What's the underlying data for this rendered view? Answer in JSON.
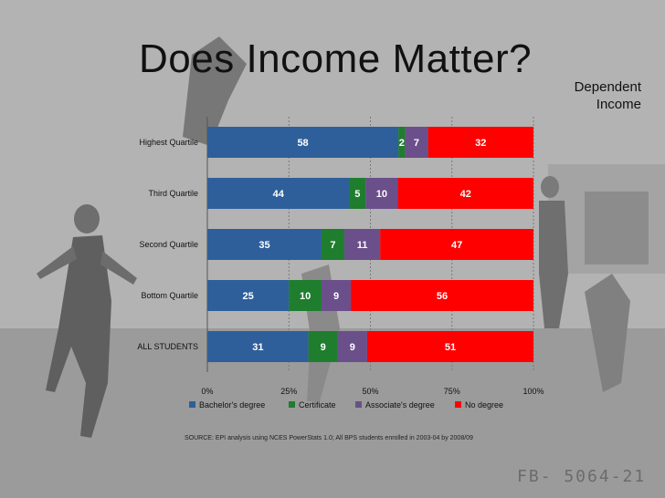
{
  "slide": {
    "title": "Does Income Matter?",
    "subtitle_line1": "Dependent",
    "subtitle_line2": "Income",
    "source": "SOURCE: EPI analysis using NCES PowerStats 1.0; All BPS students enrolled in 2003-04 by 2008/09",
    "stamp": "FB- 5064-21"
  },
  "chart_data": {
    "type": "bar",
    "orientation": "horizontal",
    "stacked": "percent",
    "categories": [
      "Highest Quartile",
      "Third Quartile",
      "Second Quartile",
      "Bottom Quartile",
      "ALL STUDENTS"
    ],
    "series": [
      {
        "name": "Bachelor's degree",
        "color": "#2e5f9a",
        "values": [
          58,
          44,
          35,
          25,
          31
        ]
      },
      {
        "name": "Certificate",
        "color": "#1f7d2e",
        "values": [
          2,
          5,
          7,
          10,
          9
        ]
      },
      {
        "name": "Associate's degree",
        "color": "#6a4f8a",
        "values": [
          7,
          10,
          11,
          9,
          9
        ]
      },
      {
        "name": "No degree",
        "color": "#ff0000",
        "values": [
          32,
          42,
          47,
          56,
          51
        ]
      }
    ],
    "x_ticks": [
      "0%",
      "25%",
      "50%",
      "75%",
      "100%"
    ],
    "xlim": [
      0,
      100
    ],
    "grid": true,
    "legend_position": "bottom"
  }
}
